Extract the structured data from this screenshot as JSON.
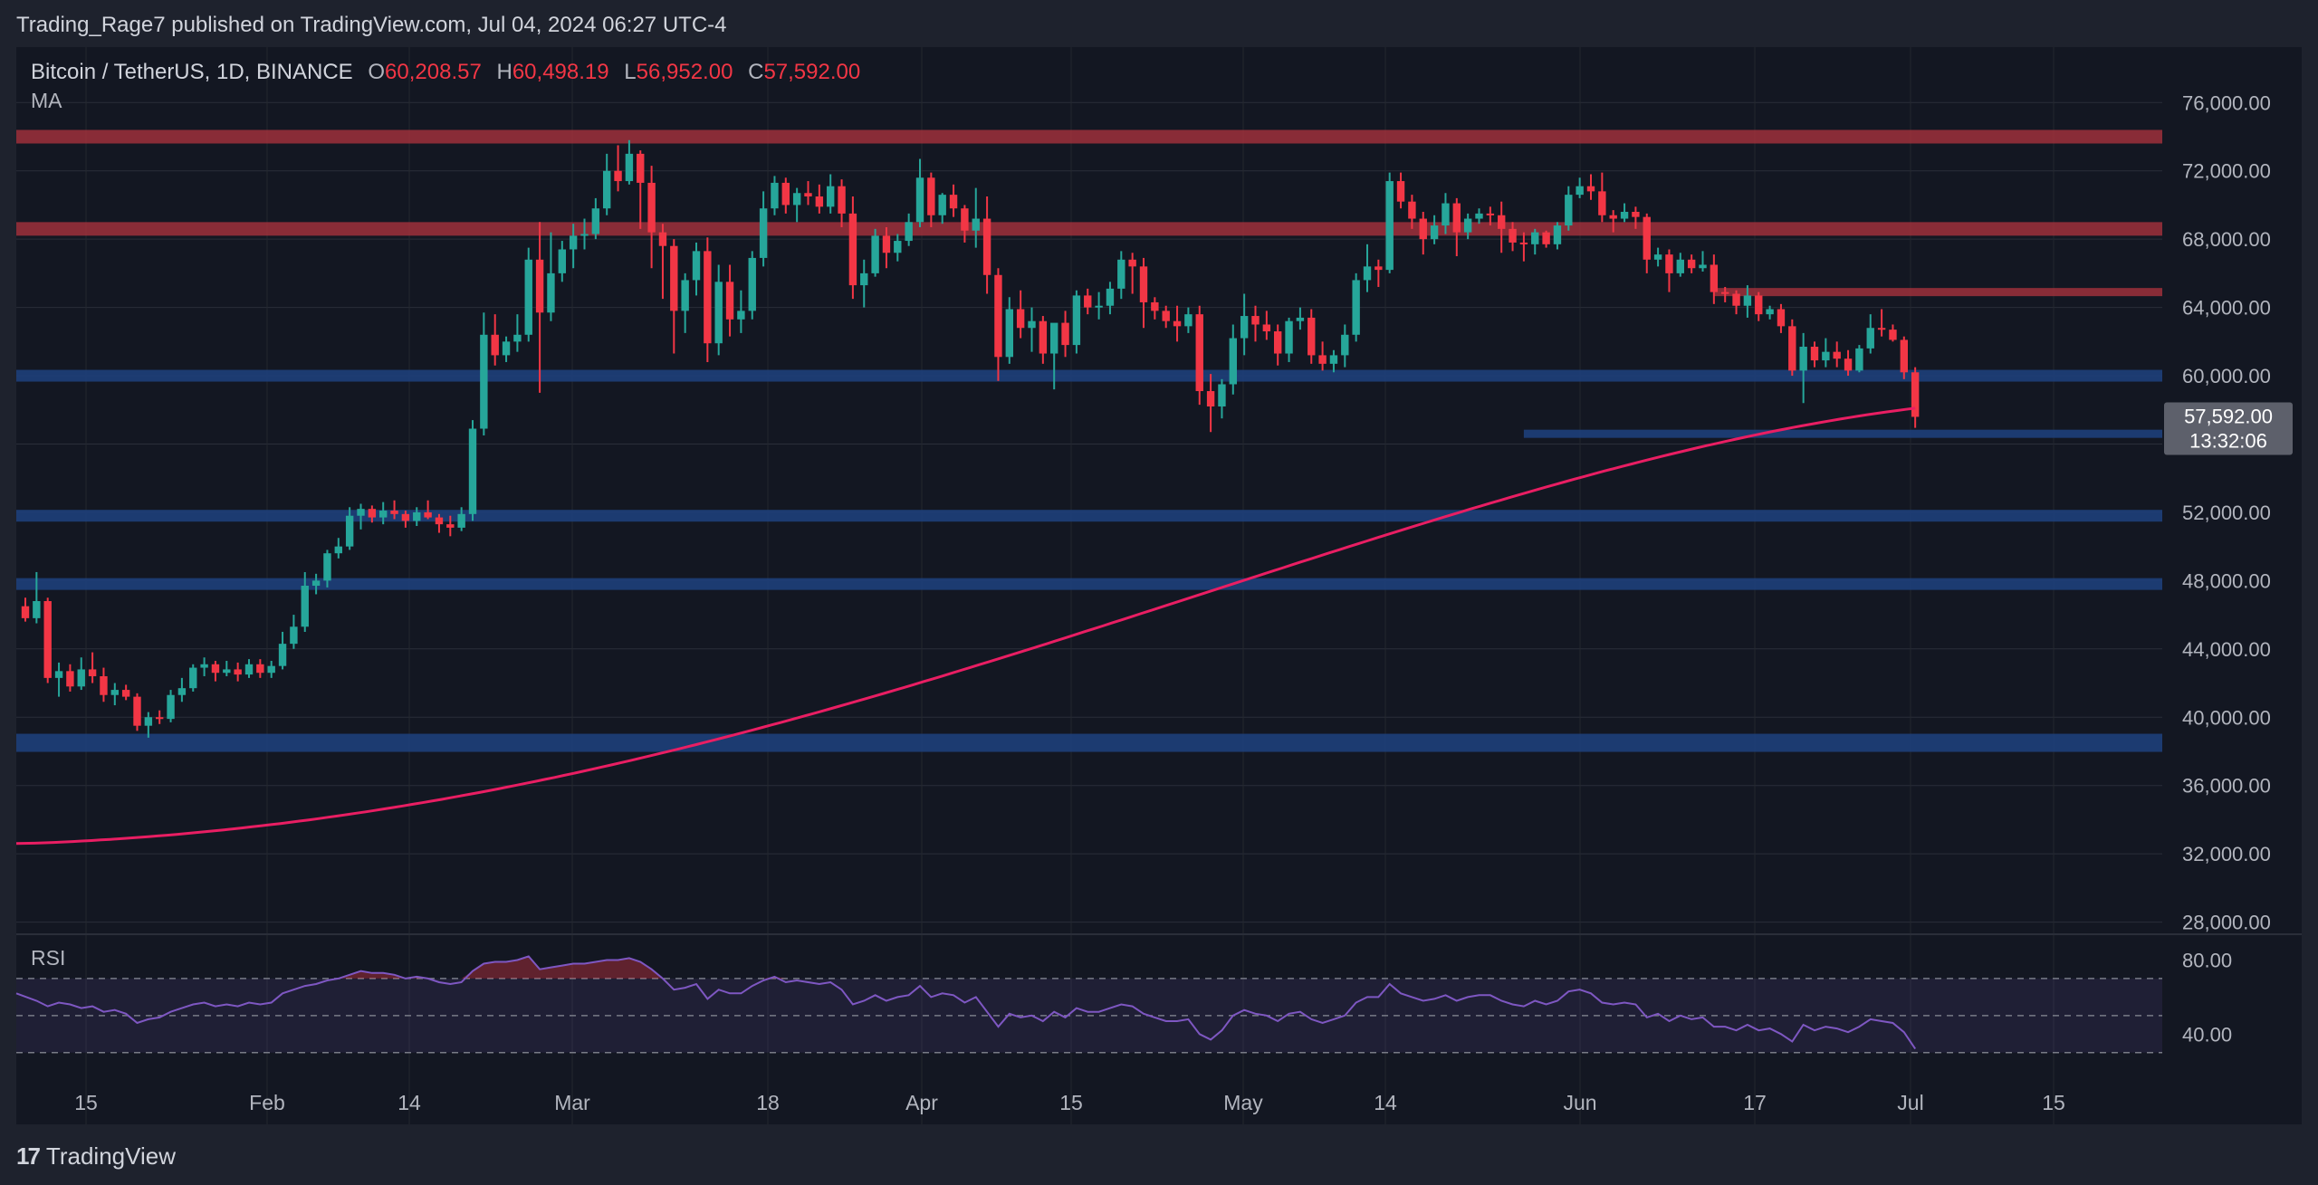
{
  "header": {
    "published": "Trading_Rage7 published on TradingView.com, Jul 04, 2024 06:27 UTC-4"
  },
  "symbol": {
    "name": "Bitcoin / TetherUS, 1D, BINANCE",
    "o_label": "O",
    "o_value": "60,208.57",
    "h_label": "H",
    "h_value": "60,498.19",
    "l_label": "L",
    "l_value": "56,952.00",
    "c_label": "C",
    "c_value": "57,592.00"
  },
  "indicator_label": "MA",
  "rsi_label": "RSI",
  "brand": {
    "name": "TradingView",
    "mark": "17"
  },
  "colors": {
    "background": "#131722",
    "frame": "#1e222d",
    "up": "#26a69a",
    "down": "#f23645",
    "ma": "#e91e63",
    "rsi": "#7e57c2",
    "resistance_zone": "#b2343f",
    "support_zone": "#1e3f7a"
  },
  "chart_data": [
    {
      "type": "candlestick",
      "title": "",
      "x_axis_labels": [
        "15",
        "Feb",
        "14",
        "Mar",
        "18",
        "Apr",
        "15",
        "May",
        "14",
        "Jun",
        "17",
        "Jul",
        "15"
      ],
      "y_ticks": [
        "76,000.00",
        "72,000.00",
        "68,000.00",
        "64,000.00",
        "60,000.00",
        "56,000.00",
        "52,000.00",
        "48,000.00",
        "44,000.00",
        "40,000.00",
        "36,000.00",
        "32,000.00",
        "28,000.00"
      ],
      "ylim": [
        27500,
        77500
      ],
      "last_price": {
        "value": "57,592.00",
        "countdown": "13:32:06"
      },
      "resistance_zones": [
        74000,
        68600,
        64900
      ],
      "support_zones": [
        60000,
        56600,
        51800,
        47800,
        38500
      ],
      "ohlc": [
        [
          46500,
          47000,
          45600,
          45800
        ],
        [
          45800,
          48500,
          45500,
          46800
        ],
        [
          46800,
          47000,
          42000,
          42300
        ],
        [
          42300,
          43200,
          41200,
          42700
        ],
        [
          42700,
          43100,
          41500,
          41800
        ],
        [
          41800,
          43500,
          41600,
          42800
        ],
        [
          42800,
          43800,
          42000,
          42400
        ],
        [
          42400,
          42900,
          40900,
          41300
        ],
        [
          41300,
          42000,
          40700,
          41600
        ],
        [
          41600,
          41900,
          41000,
          41200
        ],
        [
          41200,
          41400,
          39200,
          39500
        ],
        [
          39500,
          40300,
          38800,
          40000
        ],
        [
          40000,
          40400,
          39600,
          39900
        ],
        [
          39900,
          41600,
          39700,
          41300
        ],
        [
          41300,
          42300,
          40900,
          41700
        ],
        [
          41700,
          43100,
          41500,
          42900
        ],
        [
          42900,
          43500,
          42400,
          43100
        ],
        [
          43100,
          43300,
          42100,
          42600
        ],
        [
          42600,
          43300,
          42400,
          42800
        ],
        [
          42800,
          43200,
          42100,
          42500
        ],
        [
          42500,
          43400,
          42300,
          43100
        ],
        [
          43100,
          43400,
          42300,
          42600
        ],
        [
          42600,
          43300,
          42300,
          43000
        ],
        [
          43000,
          45000,
          42800,
          44300
        ],
        [
          44300,
          46000,
          44000,
          45300
        ],
        [
          45300,
          48500,
          45000,
          47700
        ],
        [
          47700,
          48400,
          47200,
          48000
        ],
        [
          48000,
          49800,
          47600,
          49600
        ],
        [
          49600,
          50500,
          49300,
          50000
        ],
        [
          50000,
          52300,
          49800,
          51800
        ],
        [
          51800,
          52500,
          51000,
          52200
        ],
        [
          52200,
          52400,
          51400,
          51700
        ],
        [
          51700,
          52600,
          51300,
          52100
        ],
        [
          52100,
          52700,
          51600,
          51900
        ],
        [
          51900,
          52100,
          51100,
          51500
        ],
        [
          51500,
          52300,
          51200,
          52000
        ],
        [
          52000,
          52700,
          51600,
          51700
        ],
        [
          51700,
          51900,
          50800,
          51300
        ],
        [
          51300,
          51800,
          50600,
          51100
        ],
        [
          51100,
          52300,
          50900,
          51900
        ],
        [
          51900,
          57400,
          51500,
          56900
        ],
        [
          56900,
          63700,
          56500,
          62400
        ],
        [
          62400,
          63600,
          60600,
          61200
        ],
        [
          61200,
          62300,
          60800,
          62000
        ],
        [
          62000,
          63600,
          61400,
          62400
        ],
        [
          62400,
          67500,
          62000,
          66800
        ],
        [
          66800,
          69000,
          59000,
          63700
        ],
        [
          63700,
          68400,
          63200,
          66000
        ],
        [
          66000,
          67900,
          65500,
          67400
        ],
        [
          67400,
          68900,
          66300,
          68200
        ],
        [
          68200,
          69200,
          67400,
          68300
        ],
        [
          68300,
          70400,
          68000,
          69800
        ],
        [
          69800,
          73000,
          69400,
          72000
        ],
        [
          72000,
          73500,
          70800,
          71400
        ],
        [
          71400,
          73800,
          71200,
          73000
        ],
        [
          73000,
          73200,
          68600,
          71300
        ],
        [
          71300,
          72300,
          66300,
          68400
        ],
        [
          68400,
          68900,
          64500,
          67600
        ],
        [
          67600,
          68000,
          61300,
          63800
        ],
        [
          63800,
          66000,
          62500,
          65600
        ],
        [
          65600,
          67800,
          64700,
          67300
        ],
        [
          67300,
          68100,
          60800,
          61900
        ],
        [
          61900,
          66500,
          61200,
          65500
        ],
        [
          65500,
          66500,
          62300,
          63300
        ],
        [
          63300,
          65000,
          62500,
          63800
        ],
        [
          63800,
          67300,
          63300,
          66900
        ],
        [
          66900,
          70800,
          66400,
          69800
        ],
        [
          69800,
          71700,
          69400,
          71300
        ],
        [
          71300,
          71600,
          69500,
          70000
        ],
        [
          70000,
          71000,
          69000,
          70700
        ],
        [
          70700,
          71400,
          70000,
          70500
        ],
        [
          70500,
          71200,
          69500,
          69900
        ],
        [
          69900,
          71800,
          69500,
          71100
        ],
        [
          71100,
          71500,
          68700,
          69500
        ],
        [
          69500,
          70500,
          64500,
          65300
        ],
        [
          65300,
          66800,
          64000,
          66000
        ],
        [
          66000,
          68600,
          65800,
          68200
        ],
        [
          68200,
          68700,
          66300,
          67200
        ],
        [
          67200,
          68300,
          66700,
          67900
        ],
        [
          67900,
          69500,
          67600,
          69000
        ],
        [
          69000,
          72700,
          68700,
          71600
        ],
        [
          71600,
          71900,
          68700,
          69400
        ],
        [
          69400,
          70700,
          68900,
          70600
        ],
        [
          70600,
          71200,
          69300,
          69800
        ],
        [
          69800,
          70000,
          67800,
          68500
        ],
        [
          68500,
          71000,
          67500,
          69200
        ],
        [
          69200,
          70500,
          64800,
          65900
        ],
        [
          65900,
          66300,
          59700,
          61100
        ],
        [
          61100,
          64600,
          60700,
          63900
        ],
        [
          63900,
          65000,
          62200,
          62800
        ],
        [
          62800,
          64000,
          61400,
          63200
        ],
        [
          63200,
          63500,
          60700,
          61300
        ],
        [
          61300,
          63000,
          59200,
          63100
        ],
        [
          63100,
          63800,
          61100,
          61800
        ],
        [
          61800,
          65000,
          61300,
          64700
        ],
        [
          64700,
          65100,
          63600,
          64000
        ],
        [
          64000,
          64900,
          63300,
          64100
        ],
        [
          64100,
          65500,
          63600,
          65100
        ],
        [
          65100,
          67300,
          64500,
          66800
        ],
        [
          66800,
          67200,
          64800,
          66400
        ],
        [
          66400,
          66900,
          62800,
          64300
        ],
        [
          64300,
          64600,
          63300,
          63800
        ],
        [
          63800,
          64100,
          62800,
          63200
        ],
        [
          63200,
          64100,
          62000,
          62900
        ],
        [
          62900,
          64000,
          62500,
          63600
        ],
        [
          63600,
          64100,
          58300,
          59100
        ],
        [
          59100,
          60100,
          56700,
          58200
        ],
        [
          58200,
          59800,
          57500,
          59500
        ],
        [
          59500,
          63000,
          58900,
          62200
        ],
        [
          62200,
          64800,
          61200,
          63500
        ],
        [
          63500,
          64100,
          62000,
          63000
        ],
        [
          63000,
          63800,
          62100,
          62600
        ],
        [
          62600,
          63000,
          60600,
          61300
        ],
        [
          61300,
          63400,
          60800,
          63200
        ],
        [
          63200,
          64000,
          62700,
          63400
        ],
        [
          63400,
          63900,
          60700,
          61200
        ],
        [
          61200,
          62000,
          60300,
          60700
        ],
        [
          60700,
          61500,
          60200,
          61200
        ],
        [
          61200,
          63000,
          60500,
          62400
        ],
        [
          62400,
          66000,
          62000,
          65600
        ],
        [
          65600,
          67700,
          64900,
          66400
        ],
        [
          66400,
          66800,
          65200,
          66200
        ],
        [
          66200,
          71900,
          66000,
          71400
        ],
        [
          71400,
          71900,
          69800,
          70200
        ],
        [
          70200,
          70600,
          68600,
          69200
        ],
        [
          69200,
          69600,
          67100,
          68000
        ],
        [
          68000,
          69400,
          67700,
          68800
        ],
        [
          68800,
          70700,
          68300,
          70100
        ],
        [
          70100,
          70400,
          67000,
          68400
        ],
        [
          68400,
          69500,
          68000,
          69200
        ],
        [
          69200,
          69800,
          68900,
          69500
        ],
        [
          69500,
          69900,
          68800,
          69400
        ],
        [
          69400,
          70200,
          67200,
          68600
        ],
        [
          68600,
          69000,
          67300,
          67800
        ],
        [
          67800,
          68400,
          66700,
          67700
        ],
        [
          67700,
          68600,
          67100,
          68400
        ],
        [
          68400,
          68500,
          67500,
          67700
        ],
        [
          67700,
          69000,
          67400,
          68800
        ],
        [
          68800,
          71100,
          68500,
          70600
        ],
        [
          70600,
          71600,
          70400,
          71100
        ],
        [
          71100,
          71800,
          70300,
          70800
        ],
        [
          70800,
          71900,
          69000,
          69400
        ],
        [
          69400,
          69700,
          68400,
          69200
        ],
        [
          69200,
          70100,
          69000,
          69600
        ],
        [
          69600,
          69900,
          68600,
          69300
        ],
        [
          69300,
          69500,
          66000,
          66800
        ],
        [
          66800,
          67500,
          66400,
          67100
        ],
        [
          67100,
          67400,
          64900,
          66000
        ],
        [
          66000,
          67200,
          65800,
          66800
        ],
        [
          66800,
          67100,
          66000,
          66300
        ],
        [
          66300,
          67300,
          66100,
          66500
        ],
        [
          66500,
          67100,
          64200,
          64900
        ],
        [
          64900,
          65200,
          64300,
          64800
        ],
        [
          64800,
          65000,
          63600,
          64100
        ],
        [
          64100,
          65300,
          63400,
          64700
        ],
        [
          64700,
          64900,
          63200,
          63600
        ],
        [
          63600,
          64100,
          63300,
          63900
        ],
        [
          63900,
          64200,
          62500,
          62900
        ],
        [
          62900,
          63300,
          60000,
          60300
        ],
        [
          60300,
          62500,
          58400,
          61700
        ],
        [
          61700,
          62000,
          60500,
          60900
        ],
        [
          60900,
          62200,
          60500,
          61400
        ],
        [
          61400,
          62000,
          60500,
          61000
        ],
        [
          61000,
          61500,
          60000,
          60300
        ],
        [
          60300,
          61800,
          60200,
          61600
        ],
        [
          61600,
          63600,
          61300,
          62800
        ],
        [
          62800,
          63900,
          62300,
          62700
        ],
        [
          62700,
          63000,
          62000,
          62100
        ],
        [
          62100,
          62300,
          59800,
          60200
        ],
        [
          60200,
          60500,
          56950,
          57592
        ]
      ],
      "ma": {
        "start": 32600,
        "end": 58100
      }
    },
    {
      "type": "line",
      "title": "RSI",
      "y_ticks": [
        "80.00",
        "40.00"
      ],
      "ylim": [
        24,
        90
      ],
      "bands": [
        70,
        50,
        30
      ],
      "values": [
        62,
        58,
        55,
        57,
        56,
        54,
        55,
        52,
        53,
        51,
        46,
        48,
        49,
        52,
        54,
        56,
        57,
        55,
        56,
        55,
        57,
        56,
        57,
        62,
        64,
        66,
        67,
        69,
        70,
        72,
        74,
        73,
        73,
        72,
        70,
        71,
        70,
        68,
        67,
        68,
        74,
        78,
        79,
        79,
        80,
        82,
        75,
        76,
        77,
        78,
        78,
        79,
        80,
        80,
        81,
        79,
        75,
        70,
        64,
        65,
        67,
        59,
        64,
        62,
        62,
        66,
        69,
        71,
        68,
        69,
        68,
        67,
        68,
        64,
        56,
        58,
        61,
        58,
        60,
        61,
        66,
        60,
        62,
        61,
        57,
        60,
        52,
        44,
        51,
        49,
        50,
        47,
        52,
        49,
        54,
        52,
        52,
        54,
        56,
        55,
        51,
        49,
        47,
        47,
        48,
        40,
        37,
        42,
        50,
        53,
        51,
        50,
        47,
        51,
        52,
        48,
        46,
        48,
        50,
        57,
        60,
        60,
        67,
        62,
        60,
        58,
        59,
        61,
        58,
        60,
        61,
        61,
        58,
        56,
        55,
        58,
        56,
        58,
        63,
        64,
        62,
        57,
        56,
        57,
        56,
        49,
        51,
        47,
        50,
        48,
        49,
        44,
        44,
        42,
        45,
        42,
        43,
        40,
        36,
        45,
        42,
        44,
        43,
        41,
        44,
        48,
        47,
        46,
        41,
        32
      ]
    }
  ]
}
